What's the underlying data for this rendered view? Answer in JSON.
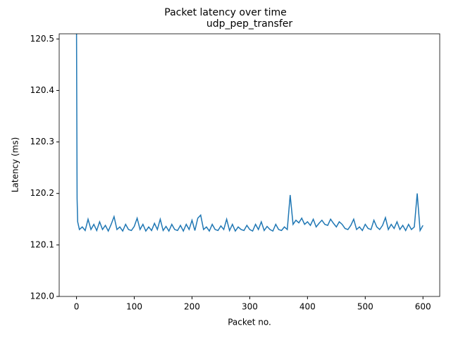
{
  "chart_data": {
    "type": "line",
    "title": "Packet latency over time",
    "subtitle": "udp_pep_transfer",
    "x_label": "Packet no.",
    "y_label": "Latency (ms)",
    "x": [
      0,
      1,
      2,
      5,
      10,
      15,
      20,
      25,
      30,
      35,
      40,
      45,
      50,
      55,
      60,
      65,
      70,
      75,
      80,
      85,
      90,
      95,
      100,
      105,
      110,
      115,
      120,
      125,
      130,
      135,
      140,
      145,
      150,
      155,
      160,
      165,
      170,
      175,
      180,
      185,
      190,
      195,
      200,
      205,
      210,
      215,
      220,
      225,
      230,
      235,
      240,
      245,
      250,
      255,
      260,
      265,
      270,
      275,
      280,
      285,
      290,
      295,
      300,
      305,
      310,
      315,
      320,
      325,
      330,
      335,
      340,
      345,
      350,
      355,
      360,
      365,
      370,
      375,
      380,
      385,
      390,
      395,
      400,
      405,
      410,
      415,
      420,
      425,
      430,
      435,
      440,
      445,
      450,
      455,
      460,
      465,
      470,
      475,
      480,
      485,
      490,
      495,
      500,
      505,
      510,
      515,
      520,
      525,
      530,
      535,
      540,
      545,
      550,
      555,
      560,
      565,
      570,
      575,
      580,
      585,
      590,
      595,
      600
    ],
    "series": [
      {
        "color": "#1f77b4",
        "values": [
          120.52,
          120.19,
          120.145,
          120.13,
          120.135,
          120.128,
          120.15,
          120.13,
          120.14,
          120.128,
          120.145,
          120.13,
          120.138,
          120.127,
          120.14,
          120.155,
          120.13,
          120.135,
          120.127,
          120.14,
          120.13,
          120.128,
          120.136,
          120.152,
          120.13,
          120.14,
          120.127,
          120.135,
          120.128,
          120.142,
          120.13,
          120.15,
          120.128,
          120.136,
          120.127,
          120.14,
          120.13,
          120.128,
          120.138,
          120.127,
          120.14,
          120.13,
          120.148,
          120.128,
          120.152,
          120.158,
          120.13,
          120.135,
          120.127,
          120.14,
          120.13,
          120.128,
          120.137,
          120.13,
          120.15,
          120.128,
          120.14,
          120.127,
          120.135,
          120.13,
          120.128,
          120.138,
          120.13,
          120.127,
          120.14,
          120.13,
          120.145,
          120.128,
          120.136,
          120.13,
          120.127,
          120.14,
          120.13,
          120.128,
          120.135,
          120.13,
          120.197,
          120.14,
          120.148,
          120.143,
          120.152,
          120.14,
          120.145,
          120.138,
          120.15,
          120.135,
          120.142,
          120.148,
          120.14,
          120.138,
          120.15,
          120.142,
          120.135,
          120.145,
          120.14,
          120.132,
          120.13,
          120.138,
          120.15,
          120.13,
          120.135,
          120.128,
          120.14,
          120.132,
          120.13,
          120.148,
          120.135,
          120.13,
          120.138,
          120.153,
          120.13,
          120.14,
          120.132,
          120.145,
          120.13,
          120.138,
          120.128,
          120.14,
          120.13,
          120.135,
          120.2,
          120.128,
          120.138
        ]
      }
    ],
    "xlim": [
      -30,
      629
    ],
    "ylim": [
      120.0,
      120.51
    ],
    "xticks": [
      0,
      100,
      200,
      300,
      400,
      500,
      600
    ],
    "yticks": [
      {
        "value": 120.0,
        "label": "120.0"
      },
      120.1,
      120.2,
      120.3,
      120.4,
      120.5
    ]
  }
}
